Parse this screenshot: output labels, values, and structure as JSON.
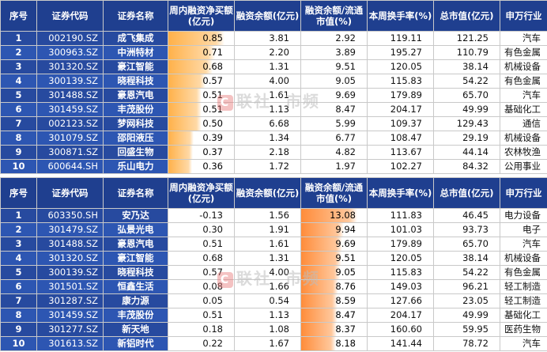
{
  "headers": [
    "序号",
    "证券代码",
    "证券名称",
    "周内融资净买额(亿元)",
    "融资余额(亿元)",
    "融资余额/流通市值(%)",
    "本周换手率(%)",
    "总市值(亿元)",
    "申万行业"
  ],
  "colors": {
    "header_bg": "#1f3f8f",
    "left_bg": "#274a9f",
    "bar_orange": "#ffb14a",
    "bar_deep": "#ff8c3a"
  },
  "watermark": "联社",
  "watermark_logo": "C",
  "watermark2": "市频",
  "table1": {
    "bar_column": 3,
    "rows": [
      {
        "idx": "1",
        "code": "002190.SZ",
        "name": "成飞集成",
        "net": "0.85",
        "bal": "3.81",
        "ratio": "2.92",
        "turn": "119.11",
        "mcap": "121.25",
        "ind": "汽车"
      },
      {
        "idx": "2",
        "code": "300963.SZ",
        "name": "中洲特材",
        "net": "0.71",
        "bal": "2.20",
        "ratio": "3.89",
        "turn": "195.27",
        "mcap": "110.79",
        "ind": "有色金属"
      },
      {
        "idx": "3",
        "code": "301320.SZ",
        "name": "豪江智能",
        "net": "0.68",
        "bal": "1.31",
        "ratio": "9.51",
        "turn": "120.05",
        "mcap": "38.14",
        "ind": "机械设备"
      },
      {
        "idx": "4",
        "code": "300139.SZ",
        "name": "晓程科技",
        "net": "0.57",
        "bal": "4.00",
        "ratio": "9.05",
        "turn": "115.83",
        "mcap": "54.22",
        "ind": "有色金属"
      },
      {
        "idx": "5",
        "code": "301488.SZ",
        "name": "豪恩汽电",
        "net": "0.51",
        "bal": "1.61",
        "ratio": "9.69",
        "turn": "179.89",
        "mcap": "65.70",
        "ind": "汽车"
      },
      {
        "idx": "6",
        "code": "301459.SZ",
        "name": "丰茂股份",
        "net": "0.51",
        "bal": "1.13",
        "ratio": "8.47",
        "turn": "204.17",
        "mcap": "49.99",
        "ind": "基础化工"
      },
      {
        "idx": "7",
        "code": "002123.SZ",
        "name": "梦网科技",
        "net": "0.50",
        "bal": "6.68",
        "ratio": "5.99",
        "turn": "109.37",
        "mcap": "129.43",
        "ind": "通信"
      },
      {
        "idx": "8",
        "code": "301079.SZ",
        "name": "邵阳液压",
        "net": "0.39",
        "bal": "1.34",
        "ratio": "6.77",
        "turn": "108.47",
        "mcap": "29.19",
        "ind": "机械设备"
      },
      {
        "idx": "9",
        "code": "300871.SZ",
        "name": "回盛生物",
        "net": "0.37",
        "bal": "2.18",
        "ratio": "4.82",
        "turn": "113.67",
        "mcap": "44.14",
        "ind": "农林牧渔"
      },
      {
        "idx": "10",
        "code": "600644.SH",
        "name": "乐山电力",
        "net": "0.36",
        "bal": "1.72",
        "ratio": "1.97",
        "turn": "102.27",
        "mcap": "84.32",
        "ind": "公用事业"
      }
    ]
  },
  "table2": {
    "bar_column": 5,
    "rows": [
      {
        "idx": "1",
        "code": "603350.SH",
        "name": "安乃达",
        "net": "-0.13",
        "bal": "1.56",
        "ratio": "13.08",
        "turn": "111.83",
        "mcap": "46.45",
        "ind": "电力设备"
      },
      {
        "idx": "2",
        "code": "301479.SZ",
        "name": "弘景光电",
        "net": "0.30",
        "bal": "1.91",
        "ratio": "9.94",
        "turn": "101.03",
        "mcap": "93.73",
        "ind": "电子"
      },
      {
        "idx": "3",
        "code": "301488.SZ",
        "name": "豪恩汽电",
        "net": "0.51",
        "bal": "1.61",
        "ratio": "9.69",
        "turn": "179.89",
        "mcap": "65.70",
        "ind": "汽车"
      },
      {
        "idx": "4",
        "code": "301320.SZ",
        "name": "豪江智能",
        "net": "0.68",
        "bal": "1.31",
        "ratio": "9.51",
        "turn": "120.05",
        "mcap": "38.14",
        "ind": "机械设备"
      },
      {
        "idx": "5",
        "code": "300139.SZ",
        "name": "晓程科技",
        "net": "0.57",
        "bal": "4.00",
        "ratio": "9.05",
        "turn": "115.83",
        "mcap": "54.22",
        "ind": "有色金属"
      },
      {
        "idx": "6",
        "code": "301501.SZ",
        "name": "恒鑫生活",
        "net": "0.08",
        "bal": "1.66",
        "ratio": "8.76",
        "turn": "149.03",
        "mcap": "96.21",
        "ind": "轻工制造"
      },
      {
        "idx": "7",
        "code": "301287.SZ",
        "name": "康力源",
        "net": "0.05",
        "bal": "0.54",
        "ratio": "8.59",
        "turn": "127.66",
        "mcap": "23.05",
        "ind": "轻工制造"
      },
      {
        "idx": "8",
        "code": "301459.SZ",
        "name": "丰茂股份",
        "net": "0.51",
        "bal": "1.13",
        "ratio": "8.47",
        "turn": "204.17",
        "mcap": "49.99",
        "ind": "基础化工"
      },
      {
        "idx": "9",
        "code": "301277.SZ",
        "name": "新天地",
        "net": "0.18",
        "bal": "1.08",
        "ratio": "8.37",
        "turn": "160.60",
        "mcap": "59.95",
        "ind": "医药生物"
      },
      {
        "idx": "10",
        "code": "301613.SZ",
        "name": "新铝时代",
        "net": "0.22",
        "bal": "1.67",
        "ratio": "8.18",
        "turn": "141.44",
        "mcap": "78.72",
        "ind": "汽车"
      }
    ]
  }
}
